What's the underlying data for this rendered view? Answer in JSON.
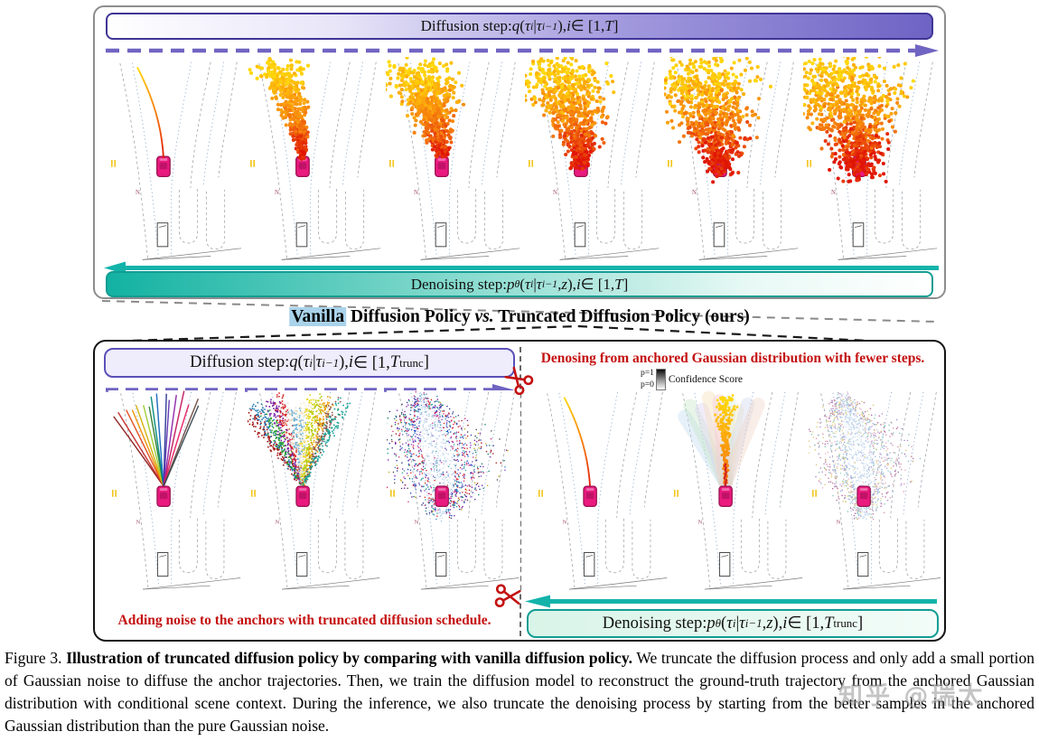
{
  "figure": {
    "top_panel": {
      "diffusion_banner": [
        {
          "t": "Diffusion step: "
        },
        {
          "t": "q",
          "it": 1
        },
        {
          "t": "("
        },
        {
          "t": "τ",
          "it": 1
        },
        {
          "t": "i",
          "sup": 1,
          "it": 1
        },
        {
          "t": "|"
        },
        {
          "t": "τ",
          "it": 1
        },
        {
          "t": "i−1",
          "sup": 1,
          "it": 1
        },
        {
          "t": "), "
        },
        {
          "t": "i",
          "it": 1
        },
        {
          "t": " ∈ [1,"
        },
        {
          "t": "T",
          "it": 1
        },
        {
          "t": "]"
        }
      ],
      "denoising_banner": [
        {
          "t": "Denoising step: "
        },
        {
          "t": "p",
          "it": 1
        },
        {
          "t": "θ",
          "sub": 1,
          "it": 1
        },
        {
          "t": "("
        },
        {
          "t": "τ",
          "it": 1
        },
        {
          "t": "i",
          "sup": 1,
          "it": 1
        },
        {
          "t": "|"
        },
        {
          "t": "τ",
          "it": 1
        },
        {
          "t": "i−1",
          "sup": 1,
          "it": 1
        },
        {
          "t": ", "
        },
        {
          "t": "z",
          "it": 1
        },
        {
          "t": "), "
        },
        {
          "t": "i",
          "it": 1
        },
        {
          "t": " ∈ [1,"
        },
        {
          "t": "T",
          "it": 1
        },
        {
          "t": "]"
        }
      ]
    },
    "comparison_title": [
      {
        "t": "Vanilla",
        "hl": 1
      },
      {
        "t": " Diffusion Policy "
      },
      {
        "t": "vs.",
        "it": 1
      },
      {
        "t": " Truncated Diffusion Policy (ours)"
      }
    ],
    "bottom_panel": {
      "left": {
        "diffusion_banner": [
          {
            "t": "Diffusion step: "
          },
          {
            "t": "q",
            "it": 1
          },
          {
            "t": "("
          },
          {
            "t": "τ",
            "it": 1
          },
          {
            "t": "i",
            "sup": 1,
            "it": 1
          },
          {
            "t": "|"
          },
          {
            "t": "τ",
            "it": 1
          },
          {
            "t": "i−1",
            "sup": 1,
            "it": 1
          },
          {
            "t": "), "
          },
          {
            "t": "i",
            "it": 1
          },
          {
            "t": " ∈ [1, "
          },
          {
            "t": "T",
            "it": 1
          },
          {
            "t": "trunc",
            "sub": 1
          },
          {
            "t": "]"
          }
        ],
        "noise_label": "Adding noise to the anchors with truncated diffusion schedule."
      },
      "right": {
        "denoise_label": "Denosing from anchored Gaussian distribution with fewer steps.",
        "legend": {
          "p_top": "p=1",
          "p_bottom": "p=0",
          "label": "Confidence Score"
        },
        "denoising_banner": [
          {
            "t": "Denoising step: "
          },
          {
            "t": "p",
            "it": 1
          },
          {
            "t": "θ",
            "sub": 1,
            "it": 1
          },
          {
            "t": "("
          },
          {
            "t": "τ",
            "it": 1
          },
          {
            "t": "i",
            "sup": 1,
            "it": 1
          },
          {
            "t": "|"
          },
          {
            "t": "τ",
            "it": 1
          },
          {
            "t": "i−1",
            "sup": 1,
            "it": 1
          },
          {
            "t": ", "
          },
          {
            "t": "z",
            "it": 1
          },
          {
            "t": "), "
          },
          {
            "t": "i",
            "it": 1
          },
          {
            "t": " ∈ [1, "
          },
          {
            "t": "T",
            "it": 1
          },
          {
            "t": "trunc",
            "sub": 1
          },
          {
            "t": "]"
          }
        ]
      }
    },
    "caption": [
      {
        "t": "Figure 3.  "
      },
      {
        "t": "Illustration of truncated diffusion policy by comparing with vanilla diffusion policy.",
        "b": 1
      },
      {
        "t": "  We truncate the diffusion process and only add a small portion of Gaussian noise to diffuse the anchor trajectories.  Then, we train the diffusion model to reconstruct the ground-truth trajectory from the anchored Gaussian distribution with conditional scene context.  During the inference, we also truncate the denoising process by starting from the better samples in the anchored Gaussian distribution than the pure Gaussian noise."
      }
    ],
    "watermark": "知乎 @瑞太",
    "colors": {
      "purple_dash": "#7064c2",
      "teal": "#14b3aa",
      "red_label": "#c41111",
      "lane_blue": "#7a9cc6",
      "lane_gray": "#9aa2aa",
      "car_fill": "#ea1a7f",
      "car_stroke": "#99114f",
      "car_window": "#c01367",
      "warm_gradient": [
        "#e01505",
        "#f3720d",
        "#fca80b",
        "#ffd90a"
      ],
      "anchor_colors": [
        "#8b1a1a",
        "#c62828",
        "#e64a19",
        "#ef8f00",
        "#d4b106",
        "#9acd32",
        "#2e7d32",
        "#00897b",
        "#1565c0",
        "#283593",
        "#5e35b1",
        "#8e24aa",
        "#c2185b",
        "#e91e63",
        "#6d4c41",
        "#37474f"
      ],
      "cluster_colors": [
        "#a31515",
        "#1f77b4",
        "#2ca02c",
        "#7b1fa2",
        "#d62728",
        "#e8e2cf",
        "#6baed6",
        "#f2e8c9",
        "#e8d820",
        "#b5cc18",
        "#f0a202",
        "#8c564b",
        "#17a398"
      ],
      "pastel_fan": [
        "#bcd7ee",
        "#c3e6c3",
        "#d9cdee",
        "#f6dcb4",
        "#f5c6d4",
        "#cfe9e3",
        "#ece4bb",
        "#ccd1ec",
        "#f0d2c0"
      ],
      "vivid_cloud": {
        "core": [
          "#d7e3f4",
          "#b9d0ea",
          "#9fc0e0",
          "#f0f2f6"
        ],
        "mid": [
          "#3f7fc1",
          "#2aa198",
          "#7f3fbf",
          "#cc2a7a",
          "#d62728",
          "#2746c8"
        ],
        "outer": [
          "#7a1fa8",
          "#a50f15",
          "#c8a515",
          "#283593",
          "#d63384",
          "#0f7d68",
          "#445"
        ]
      },
      "pastel_cloud": {
        "core": [
          "#c5d9ef",
          "#d3e2f3",
          "#b5cde8",
          "#eef2f8"
        ],
        "mid": [
          "#93b6dc",
          "#b3a3d6",
          "#e4b4c6",
          "#9fd0c8",
          "#e3d284"
        ],
        "outer": [
          "#d893ab",
          "#a98bc8",
          "#dcc878",
          "#84c2ba",
          "#c87e9a",
          "#b06aa2"
        ]
      }
    },
    "scenes": {
      "top": [
        {
          "kind": "single-trajectory"
        },
        {
          "kind": "noise-cloud",
          "points": 500,
          "sigma0": 2,
          "sigma1": 20,
          "tmin": 0
        },
        {
          "kind": "noise-cloud",
          "points": 650,
          "sigma0": 5,
          "sigma1": 30,
          "tmin": 0
        },
        {
          "kind": "noise-cloud",
          "points": 750,
          "sigma0": 9,
          "sigma1": 42,
          "tmin": -0.1
        },
        {
          "kind": "noise-cloud",
          "points": 850,
          "sigma0": 14,
          "sigma1": 52,
          "tmin": -0.18
        },
        {
          "kind": "noise-cloud",
          "points": 950,
          "sigma0": 18,
          "sigma1": 58,
          "tmin": -0.22
        }
      ],
      "bottom_left": [
        {
          "kind": "anchor-fan"
        },
        {
          "kind": "anchor-clusters"
        },
        {
          "kind": "dense-cloud",
          "palette": "vivid_cloud"
        }
      ],
      "bottom_right": [
        {
          "kind": "single-trajectory"
        },
        {
          "kind": "pastel-fan"
        },
        {
          "kind": "dense-cloud",
          "palette": "pastel_cloud"
        }
      ]
    }
  }
}
